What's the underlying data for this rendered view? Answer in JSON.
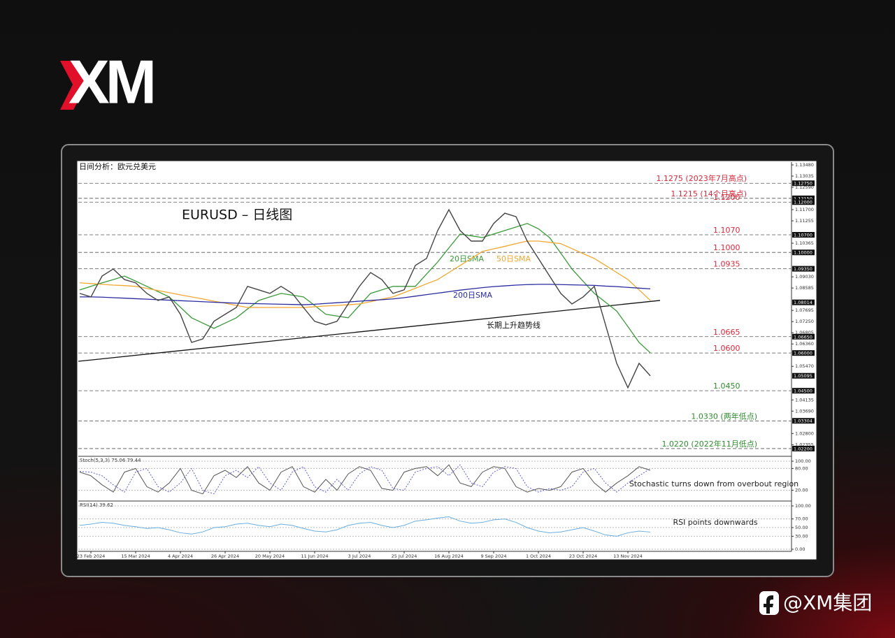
{
  "header": {
    "logo": "XM"
  },
  "footer": {
    "handle": "@XM集团"
  },
  "chart_data": [
    {
      "type": "line",
      "title": "日间分析：欧元兑美元",
      "subtitle": "EURUSD – 日线图",
      "categories": [
        null,
        "23 Feb 2024",
        null,
        null,
        null,
        "15 Mar 2024",
        null,
        null,
        null,
        "4 Apr 2024",
        null,
        null,
        null,
        "26 Apr 2024",
        null,
        null,
        null,
        "20 May 2024",
        null,
        null,
        null,
        "11 Jun 2024",
        null,
        null,
        null,
        "3 Jul 2024",
        null,
        null,
        null,
        "25 Jul 2024",
        null,
        null,
        null,
        "16 Aug 2024",
        null,
        null,
        null,
        "9 Sep 2024",
        null,
        null,
        null,
        "1 Oct 2024",
        null,
        null,
        null,
        "23 Oct 2024",
        null,
        null,
        null,
        "13 Nov 2024",
        null,
        null
      ],
      "values": [
        1.0837,
        1.0823,
        1.0906,
        1.0934,
        1.0892,
        1.0879,
        1.0837,
        1.0809,
        1.0823,
        1.0754,
        1.0642,
        1.0656,
        1.0726,
        1.0754,
        1.0781,
        1.0865,
        1.0851,
        1.0837,
        1.0865,
        1.0837,
        1.0781,
        1.0726,
        1.0712,
        1.0726,
        1.0795,
        1.0865,
        1.092,
        1.0892,
        1.0837,
        1.0851,
        1.0948,
        1.0976,
        1.1087,
        1.117,
        1.1087,
        1.1045,
        1.1045,
        1.1115,
        1.1156,
        1.1142,
        1.1045,
        1.0976,
        1.0906,
        1.0837,
        1.0795,
        1.0823,
        1.0865,
        1.0712,
        1.0559,
        1.0462,
        1.0559,
        1.05095
      ],
      "color": "#444444",
      "series": [
        {
          "name": "20日SMA",
          "color": "#3a9a3a",
          "values": [
            1.0851,
            1.0865,
            1.0879,
            1.0892,
            1.0906,
            1.0886,
            1.0865,
            1.0844,
            1.0823,
            1.0782,
            1.074,
            1.0719,
            1.0698,
            1.0719,
            1.074,
            1.0775,
            1.0809,
            1.0823,
            1.0837,
            1.083,
            1.0823,
            1.0789,
            1.0754,
            1.0747,
            1.074,
            1.0789,
            1.0837,
            1.0851,
            1.0865,
            1.0865,
            1.0865,
            1.0914,
            1.0962,
            1.1018,
            1.1073,
            1.1066,
            1.1059,
            1.1073,
            1.1087,
            1.1101,
            1.1115,
            1.1094,
            1.1059,
            1.0997,
            1.0934,
            1.0885,
            1.0837,
            1.0802,
            1.0767,
            1.0705,
            1.0642,
            1.0601
          ]
        },
        {
          "name": "50日SMA",
          "color": "#f0a830",
          "values": [
            1.0879,
            1.0876,
            1.0873,
            1.087,
            1.0868,
            1.0865,
            1.0857,
            1.0848,
            1.084,
            1.0831,
            1.0823,
            1.0815,
            1.0806,
            1.0798,
            1.0789,
            1.0781,
            1.0781,
            1.0781,
            1.0781,
            1.0781,
            1.0781,
            1.0784,
            1.0787,
            1.0789,
            1.0792,
            1.0795,
            1.0804,
            1.0814,
            1.0823,
            1.084,
            1.0857,
            1.0875,
            1.0892,
            1.092,
            1.0948,
            1.0976,
            1.1004,
            1.1014,
            1.1024,
            1.1035,
            1.1045,
            1.1045,
            1.104,
            1.1035,
            1.1015,
            1.0995,
            1.0976,
            1.0948,
            1.092,
            1.0892,
            1.0851,
            1.0809
          ]
        },
        {
          "name": "200日SMA",
          "color": "#2a2aa0",
          "values": [
            1.0823,
            1.0823,
            1.0822,
            1.082,
            1.0818,
            1.0816,
            1.0814,
            1.0812,
            1.081,
            1.0808,
            1.0806,
            1.0804,
            1.0802,
            1.08,
            1.0798,
            1.0797,
            1.0796,
            1.0795,
            1.0794,
            1.0793,
            1.0792,
            1.0794,
            1.0797,
            1.08,
            1.0803,
            1.0806,
            1.0809,
            1.0812,
            1.0815,
            1.082,
            1.0826,
            1.0832,
            1.0838,
            1.0844,
            1.085,
            1.0855,
            1.086,
            1.0864,
            1.0867,
            1.087,
            1.0872,
            1.0873,
            1.0873,
            1.0872,
            1.0871,
            1.087,
            1.0869,
            1.0866,
            1.0864,
            1.0861,
            1.0858,
            1.0855
          ]
        }
      ],
      "trendline": {
        "label": "长期上升趋势线",
        "values": [
          1.0567,
          1.0809
        ]
      },
      "levels": [
        {
          "value": 1.1275,
          "label": "1.1275 (2023年7月高点)",
          "color": "#d8283a"
        },
        {
          "value": 1.1215,
          "label": "1.1215 (14个月高点)",
          "color": "#d8283a"
        },
        {
          "value": 1.12,
          "label": "1.1200",
          "color": "#d8283a"
        },
        {
          "value": 1.107,
          "label": "1.1070",
          "color": "#d8283a"
        },
        {
          "value": 1.1,
          "label": "1.1000",
          "color": "#d8283a"
        },
        {
          "value": 1.0935,
          "label": "1.0935",
          "color": "#d8283a"
        },
        {
          "value": 1.0665,
          "label": "1.0665",
          "color": "#d8283a"
        },
        {
          "value": 1.06,
          "label": "1.0600",
          "color": "#d8283a"
        },
        {
          "value": 1.045,
          "label": "1.0450",
          "color": "#2e8b2e"
        },
        {
          "value": 1.033,
          "label": "1.0330 (两年低点)",
          "color": "#2e8b2e"
        },
        {
          "value": 1.022,
          "label": "1.0220 (2022年11月低点)",
          "color": "#2e8b2e"
        }
      ],
      "axis_tags": [
        {
          "value": 1.1275,
          "label": "1.12750"
        },
        {
          "value": 1.1215,
          "label": "1.12150"
        },
        {
          "value": 1.12,
          "label": "1.12000"
        },
        {
          "value": 1.107,
          "label": "1.10700"
        },
        {
          "value": 1.1,
          "label": "1.10000"
        },
        {
          "value": 1.0935,
          "label": "1.09350"
        },
        {
          "value": 1.08014,
          "label": "1.08014"
        },
        {
          "value": 1.0665,
          "label": "1.06650"
        },
        {
          "value": 1.06,
          "label": "1.06000"
        },
        {
          "value": 1.05095,
          "label": "1.05095"
        },
        {
          "value": 1.045,
          "label": "1.04500"
        },
        {
          "value": 1.03304,
          "label": "1.03304"
        },
        {
          "value": 1.022,
          "label": "1.02200"
        }
      ],
      "ylim": [
        1.0192,
        1.1359
      ],
      "yticks": [
        {
          "value": 1.1348,
          "label": "1.13480"
        },
        {
          "value": 1.13035,
          "label": "1.13035"
        },
        {
          "value": 1.1259,
          "label": "1.12590"
        },
        {
          "value": 1.117,
          "label": "1.11700"
        },
        {
          "value": 1.11255,
          "label": "1.11255"
        },
        {
          "value": 1.10365,
          "label": "1.10365"
        },
        {
          "value": 1.0903,
          "label": "1.09030"
        },
        {
          "value": 1.08585,
          "label": "1.08585"
        },
        {
          "value": 1.07695,
          "label": "1.07695"
        },
        {
          "value": 1.0725,
          "label": "1.07250"
        },
        {
          "value": 1.06805,
          "label": "1.06805"
        },
        {
          "value": 1.0636,
          "label": "1.06360"
        },
        {
          "value": 1.0547,
          "label": "1.05470"
        },
        {
          "value": 1.04135,
          "label": "1.04135"
        },
        {
          "value": 1.0369,
          "label": "1.03690"
        },
        {
          "value": 1.028,
          "label": "1.02800"
        },
        {
          "value": 1.02355,
          "label": "1.02355"
        }
      ]
    },
    {
      "type": "line",
      "title": "Stoch(5,3,3) 75.06 79.44",
      "annotation": "Stochastic turns down from overbout region",
      "series": [
        {
          "color": "#555555",
          "values": [
            70,
            60,
            35,
            15,
            70,
            80,
            30,
            15,
            40,
            80,
            20,
            10,
            60,
            75,
            55,
            85,
            40,
            20,
            70,
            85,
            30,
            15,
            50,
            20,
            65,
            85,
            75,
            25,
            20,
            70,
            80,
            85,
            60,
            90,
            40,
            30,
            70,
            85,
            80,
            30,
            15,
            25,
            20,
            30,
            70,
            80,
            40,
            15,
            40,
            60,
            85,
            75.06
          ]
        },
        {
          "color": "#5a5ad8",
          "values": [
            72,
            70,
            60,
            35,
            15,
            70,
            80,
            30,
            15,
            40,
            80,
            20,
            10,
            60,
            75,
            55,
            85,
            40,
            20,
            70,
            85,
            30,
            15,
            50,
            20,
            65,
            85,
            75,
            25,
            20,
            70,
            80,
            85,
            60,
            90,
            40,
            30,
            70,
            85,
            80,
            30,
            15,
            25,
            20,
            30,
            70,
            80,
            40,
            15,
            40,
            60,
            79.44
          ]
        }
      ],
      "ylim": [
        0,
        100
      ],
      "yticks": [
        {
          "value": 100,
          "label": "100.00"
        },
        {
          "value": 80,
          "label": "80.00"
        },
        {
          "value": 20,
          "label": "20.00"
        }
      ]
    },
    {
      "type": "line",
      "title": "RSI(14) 39.62",
      "annotation": "RSI points downwards",
      "series": [
        {
          "color": "#6aaee0",
          "values": [
            55,
            58,
            62,
            60,
            55,
            52,
            48,
            50,
            45,
            38,
            35,
            40,
            50,
            52,
            58,
            60,
            55,
            52,
            58,
            55,
            48,
            42,
            40,
            45,
            55,
            60,
            62,
            55,
            50,
            55,
            65,
            68,
            72,
            75,
            65,
            60,
            62,
            68,
            70,
            62,
            50,
            42,
            38,
            40,
            45,
            50,
            42,
            33,
            30,
            38,
            42,
            39.62
          ]
        }
      ],
      "ylim": [
        0,
        100
      ],
      "yticks": [
        {
          "value": 100,
          "label": "100.00"
        },
        {
          "value": 70,
          "label": "70.00"
        },
        {
          "value": 50,
          "label": "50.00"
        },
        {
          "value": 30,
          "label": "30.00"
        },
        {
          "value": 0,
          "label": "0.00"
        }
      ]
    }
  ]
}
